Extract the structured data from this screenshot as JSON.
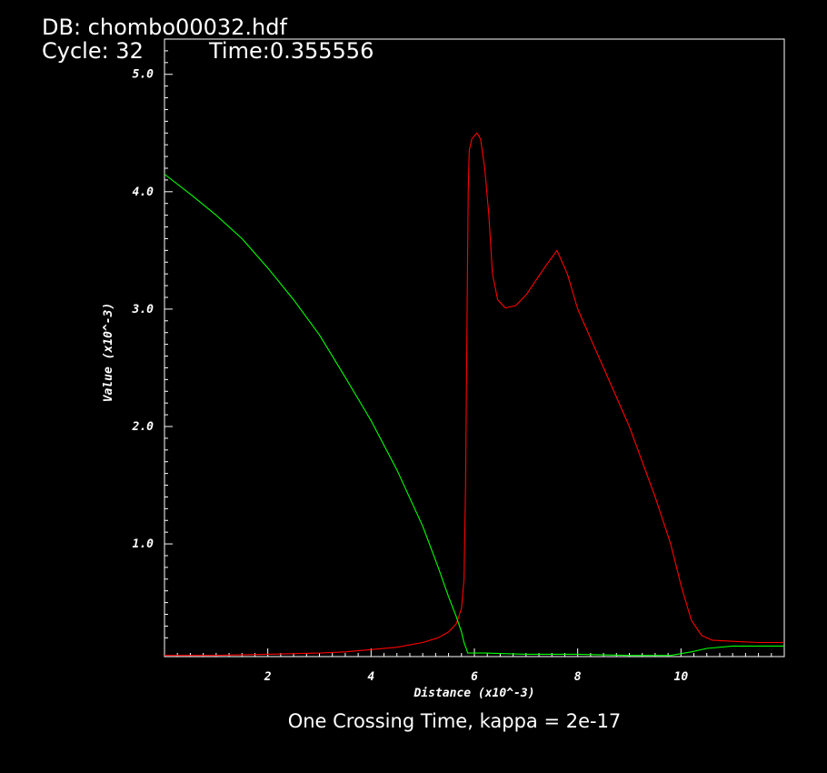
{
  "header": {
    "db_label": "DB: chombo00032.hdf",
    "cycle_label": "Cycle: 32",
    "time_label": "Time:0.355556"
  },
  "caption": "One Crossing Time, kappa = 2e-17",
  "colors": {
    "background": "#000000",
    "frame": "#ffffff",
    "series_1": "#ff0000",
    "series_2": "#00ff00"
  },
  "chart_data": {
    "type": "line",
    "xlabel": "Distance (x10^-3)",
    "ylabel": "Value (x10^-3)",
    "xlim": [
      0,
      12
    ],
    "ylim": [
      0.04,
      5.3
    ],
    "x_ticks": [
      "2",
      "4",
      "6",
      "8",
      "10"
    ],
    "x_tick_values": [
      2,
      4,
      6,
      8,
      10
    ],
    "y_ticks": [
      "1.0",
      "2.0",
      "3.0",
      "4.0",
      "5.0"
    ],
    "y_tick_values": [
      1.0,
      2.0,
      3.0,
      4.0,
      5.0
    ],
    "grid": false,
    "series": [
      {
        "color": "#ff0000",
        "x": [
          0.0,
          1.0,
          2.0,
          3.0,
          3.5,
          4.0,
          4.5,
          5.0,
          5.3,
          5.5,
          5.65,
          5.75,
          5.8,
          5.83,
          5.86,
          5.88,
          5.9,
          5.95,
          6.05,
          6.12,
          6.2,
          6.28,
          6.35,
          6.45,
          6.6,
          6.8,
          7.0,
          7.2,
          7.4,
          7.6,
          7.8,
          8.0,
          8.5,
          9.0,
          9.5,
          9.8,
          10.0,
          10.2,
          10.4,
          10.6,
          11.0,
          11.5,
          12.0
        ],
        "y": [
          0.05,
          0.05,
          0.06,
          0.07,
          0.08,
          0.1,
          0.12,
          0.16,
          0.2,
          0.25,
          0.32,
          0.45,
          0.7,
          1.5,
          3.0,
          4.0,
          4.35,
          4.45,
          4.5,
          4.45,
          4.2,
          3.8,
          3.3,
          3.08,
          3.01,
          3.03,
          3.12,
          3.25,
          3.38,
          3.5,
          3.3,
          3.0,
          2.5,
          2.0,
          1.4,
          1.0,
          0.65,
          0.35,
          0.22,
          0.18,
          0.17,
          0.16,
          0.16
        ]
      },
      {
        "color": "#00ff00",
        "x": [
          0.0,
          0.5,
          1.0,
          1.5,
          2.0,
          2.5,
          3.0,
          3.5,
          4.0,
          4.5,
          5.0,
          5.3,
          5.5,
          5.65,
          5.75,
          5.8,
          5.85,
          5.87,
          5.9,
          6.2,
          7.0,
          8.0,
          9.0,
          9.8,
          10.2,
          10.5,
          11.0,
          12.0
        ],
        "y": [
          4.15,
          3.98,
          3.8,
          3.6,
          3.35,
          3.08,
          2.78,
          2.42,
          2.05,
          1.63,
          1.15,
          0.8,
          0.55,
          0.38,
          0.25,
          0.16,
          0.1,
          0.07,
          0.07,
          0.07,
          0.06,
          0.06,
          0.05,
          0.05,
          0.08,
          0.11,
          0.13,
          0.13
        ]
      }
    ]
  }
}
